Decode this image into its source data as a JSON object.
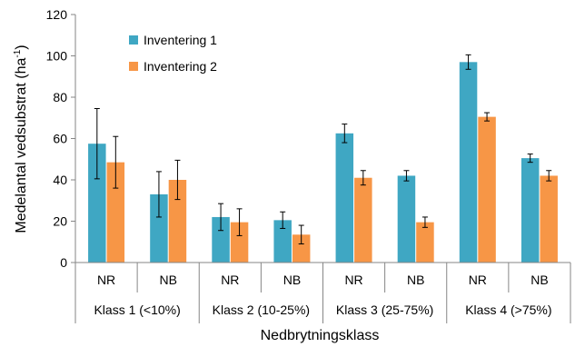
{
  "chart_data": {
    "type": "bar",
    "ylabel": "Medelantal vedsubstrat (ha",
    "ylabel_sup": "-1",
    "ylabel_close": ")",
    "xlabel": "Nedbrytningsklass",
    "ylim": [
      0,
      120
    ],
    "yticks": [
      "0",
      "20",
      "40",
      "60",
      "80",
      "100",
      "120"
    ],
    "groups": [
      {
        "label": "Klass 1 (<10%)",
        "subs": [
          "NR",
          "NB"
        ]
      },
      {
        "label": "Klass 2 (10-25%)",
        "subs": [
          "NR",
          "NB"
        ]
      },
      {
        "label": "Klass 3 (25-75%)",
        "subs": [
          "NR",
          "NB"
        ]
      },
      {
        "label": "Klass 4 (>75%)",
        "subs": [
          "NR",
          "NB"
        ]
      }
    ],
    "series": [
      {
        "name": "Inventering 1",
        "color": "#3fa7c3",
        "values": [
          57.5,
          33,
          22,
          20.5,
          62.5,
          42,
          97,
          50.5
        ],
        "errors": [
          17,
          11,
          6.5,
          4,
          4.5,
          2.5,
          3.5,
          2
        ]
      },
      {
        "name": "Inventering 2",
        "color": "#f79646",
        "values": [
          48.5,
          40,
          19.5,
          13.5,
          41,
          19.5,
          70.5,
          42
        ],
        "errors": [
          12.5,
          9.5,
          6.5,
          4.5,
          3.5,
          2.5,
          2,
          2.5
        ]
      }
    ],
    "legend_position": "top-left"
  }
}
